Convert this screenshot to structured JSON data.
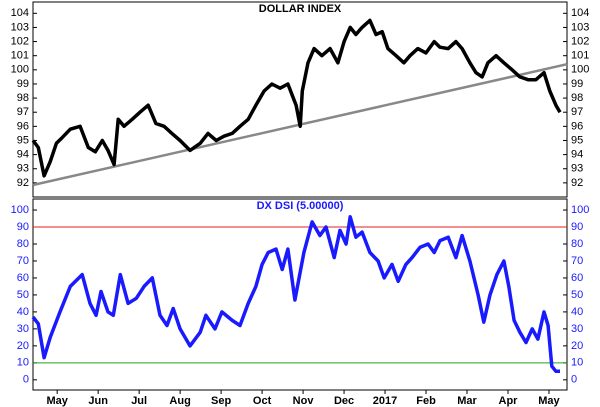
{
  "chart_data": [
    {
      "type": "line",
      "title": "DOLLAR INDEX",
      "label_color": "#000000",
      "xlim": [
        -0.09,
        12.94
      ],
      "ylim": [
        91,
        104.8
      ],
      "yticks": [
        92,
        93,
        94,
        95,
        96,
        97,
        98,
        99,
        100,
        101,
        102,
        103,
        104
      ],
      "series": [
        {
          "name": "DX",
          "color": "#000000",
          "x": [
            -0.09,
            0.04,
            0.18,
            0.33,
            0.48,
            0.62,
            0.82,
            1.06,
            1.26,
            1.43,
            1.6,
            1.74,
            1.89,
            1.99,
            2.13,
            2.33,
            2.52,
            2.72,
            2.91,
            3.11,
            3.3,
            3.5,
            3.74,
            3.99,
            4.18,
            4.38,
            4.57,
            4.77,
            4.96,
            5.16,
            5.35,
            5.55,
            5.74,
            5.94,
            6.13,
            6.33,
            6.43,
            6.48,
            6.62,
            6.77,
            6.96,
            7.16,
            7.35,
            7.5,
            7.65,
            7.79,
            7.94,
            8.13,
            8.28,
            8.43,
            8.57,
            8.77,
            8.96,
            9.11,
            9.3,
            9.5,
            9.7,
            9.84,
            10.04,
            10.23,
            10.38,
            10.57,
            10.72,
            10.87,
            11.01,
            11.21,
            11.4,
            11.6,
            11.79,
            11.99,
            12.18,
            12.38,
            12.52,
            12.67,
            12.77
          ],
          "values": [
            95,
            94.5,
            92.5,
            93.5,
            94.8,
            95.2,
            95.8,
            96,
            94.5,
            94.2,
            95,
            94.3,
            93.3,
            96.5,
            96,
            96.5,
            97,
            97.5,
            96.2,
            96,
            95.5,
            95,
            94.3,
            94.8,
            95.5,
            95,
            95.3,
            95.5,
            96,
            96.5,
            97.5,
            98.5,
            99,
            98.7,
            99,
            97.5,
            96,
            98.5,
            100.5,
            101.5,
            101,
            101.5,
            100.5,
            102,
            103,
            102.5,
            103,
            103.5,
            102.5,
            102.7,
            101.5,
            101,
            100.5,
            101,
            101.5,
            101.2,
            102,
            101.6,
            101.5,
            102,
            101.5,
            100.5,
            99.8,
            99.5,
            100.5,
            101,
            100.5,
            100,
            99.5,
            99.3,
            99.3,
            99.8,
            98.5,
            97.5,
            97
          ]
        }
      ],
      "trendline": {
        "x": [
          -0.09,
          12.94
        ],
        "values": [
          91.85,
          100.4
        ],
        "color": "#888888"
      }
    },
    {
      "type": "line",
      "title": "DX DSI (5.00000)",
      "label_color": "#1a1aff",
      "xlim": [
        -0.09,
        12.94
      ],
      "ylim": [
        -6,
        106.5
      ],
      "yticks": [
        0,
        10,
        20,
        30,
        40,
        50,
        60,
        70,
        80,
        90,
        100
      ],
      "xticks": [
        {
          "value": 0.5,
          "label": "May"
        },
        {
          "value": 1.5,
          "label": "Jun"
        },
        {
          "value": 2.5,
          "label": "Jul"
        },
        {
          "value": 3.5,
          "label": "Aug"
        },
        {
          "value": 4.5,
          "label": "Sep"
        },
        {
          "value": 5.5,
          "label": "Oct"
        },
        {
          "value": 6.5,
          "label": "Nov"
        },
        {
          "value": 7.5,
          "label": "Dec"
        },
        {
          "value": 8.5,
          "label": "2017"
        },
        {
          "value": 9.5,
          "label": "Feb"
        },
        {
          "value": 10.5,
          "label": "Mar"
        },
        {
          "value": 11.5,
          "label": "Apr"
        },
        {
          "value": 12.5,
          "label": "May"
        }
      ],
      "series": [
        {
          "name": "DSI",
          "color": "#1a1aff",
          "x": [
            -0.09,
            0.04,
            0.18,
            0.33,
            0.57,
            0.82,
            1.11,
            1.3,
            1.45,
            1.57,
            1.74,
            1.87,
            2.04,
            2.23,
            2.43,
            2.62,
            2.82,
            3.01,
            3.18,
            3.33,
            3.5,
            3.74,
            3.99,
            4.13,
            4.35,
            4.52,
            4.77,
            4.96,
            5.16,
            5.35,
            5.5,
            5.65,
            5.84,
            5.99,
            6.13,
            6.3,
            6.52,
            6.72,
            6.91,
            7.06,
            7.26,
            7.4,
            7.55,
            7.65,
            7.79,
            7.94,
            8.13,
            8.33,
            8.48,
            8.67,
            8.82,
            9.01,
            9.16,
            9.35,
            9.55,
            9.7,
            9.84,
            10.04,
            10.23,
            10.38,
            10.57,
            10.77,
            10.91,
            11.06,
            11.23,
            11.4,
            11.52,
            11.65,
            11.79,
            11.94,
            12.09,
            12.23,
            12.38,
            12.48,
            12.57,
            12.67,
            12.77
          ],
          "values": [
            37,
            33,
            13,
            25,
            40,
            55,
            62,
            45,
            38,
            52,
            40,
            38,
            62,
            45,
            48,
            55,
            60,
            38,
            32,
            42,
            30,
            20,
            28,
            38,
            30,
            40,
            35,
            32,
            45,
            55,
            68,
            75,
            77,
            65,
            77,
            47,
            75,
            93,
            85,
            90,
            72,
            88,
            80,
            96,
            84,
            87,
            75,
            70,
            60,
            68,
            58,
            68,
            72,
            78,
            80,
            75,
            82,
            84,
            72,
            85,
            70,
            50,
            34,
            50,
            62,
            70,
            55,
            35,
            28,
            22,
            30,
            24,
            40,
            32,
            8,
            5,
            5
          ]
        }
      ],
      "reference_lines": [
        {
          "value": 90,
          "color": "#e02020"
        },
        {
          "value": 10,
          "color": "#20a020"
        }
      ]
    }
  ]
}
